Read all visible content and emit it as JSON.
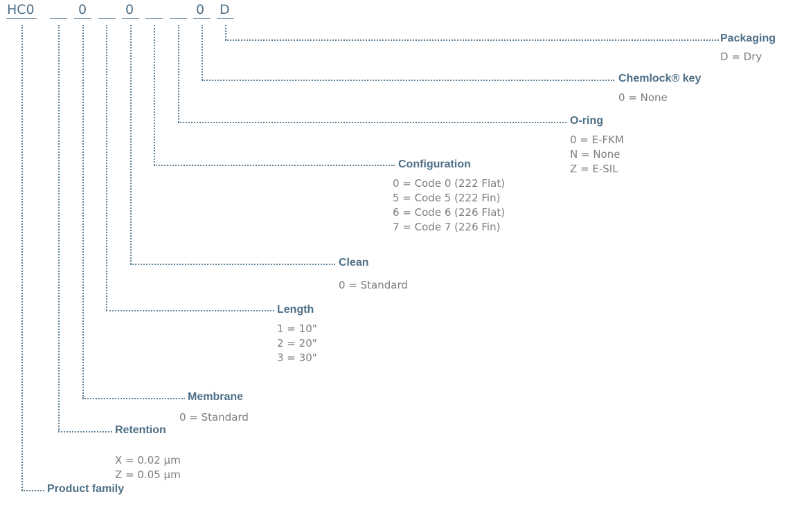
{
  "code": {
    "segments": [
      "HC0",
      "",
      "0",
      "",
      "0",
      "",
      "",
      "0",
      "D"
    ]
  },
  "fields": [
    {
      "label": "Packaging",
      "options": [
        "D = Dry"
      ]
    },
    {
      "label": "Chemlock® key",
      "options": [
        "0 = None"
      ]
    },
    {
      "label": "O-ring",
      "options": [
        "0 = E-FKM",
        "N = None",
        "Z = E-SIL"
      ]
    },
    {
      "label": "Configuration",
      "options": [
        "0 = Code 0 (222 Flat)",
        "5 = Code 5 (222 Fin)",
        "6 = Code 6 (226 Flat)",
        "7 = Code 7 (226 Fin)"
      ]
    },
    {
      "label": "Clean",
      "options": [
        "0 = Standard"
      ]
    },
    {
      "label": "Length",
      "options": [
        "1 = 10\"",
        "2 = 20\"",
        "3 = 30\""
      ]
    },
    {
      "label": "Membrane",
      "options": [
        "0 = Standard"
      ]
    },
    {
      "label": "Retention",
      "options": [
        "X = 0.02 µm",
        "Z = 0.05 µm"
      ]
    },
    {
      "label": "Product family",
      "options": []
    }
  ]
}
